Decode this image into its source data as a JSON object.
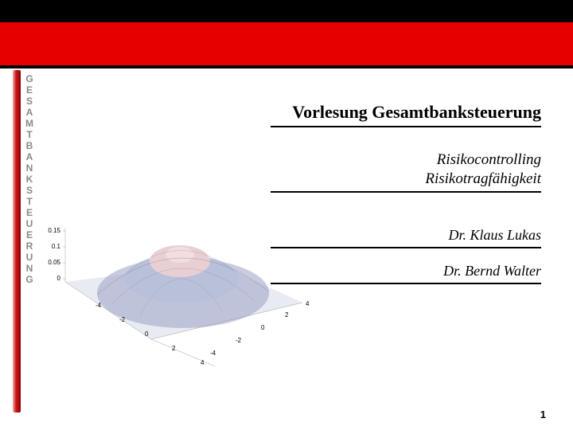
{
  "header": {
    "colors": {
      "black": "#000000",
      "red": "#e60000"
    }
  },
  "sidebar": {
    "letters": [
      "G",
      "E",
      "S",
      "A",
      "M",
      "T",
      "B",
      "A",
      "N",
      "K",
      "S",
      "T",
      "E",
      "U",
      "E",
      "R",
      "U",
      "N",
      "G"
    ],
    "bar_gradient": [
      "#f5b5b5",
      "#d11a1a",
      "#8a0000"
    ],
    "text_color": "#888888",
    "fontsize": 12
  },
  "title": "Vorlesung Gesamtbanksteuerung",
  "subtitle": {
    "line1": "Risikocontrolling",
    "line2": "Risikotragfähigkeit"
  },
  "authors": {
    "a1": "Dr. Klaus Lukas",
    "a2": "Dr. Bernd Walter"
  },
  "page_number": "1",
  "chart": {
    "type": "3d-surface",
    "description": "bivariate normal density surface",
    "z_ticks": [
      "0",
      "0.05",
      "0.1",
      "0.15"
    ],
    "x_ticks": [
      "-4",
      "-2",
      "0",
      "2",
      "4"
    ],
    "y_ticks": [
      "-4",
      "-2",
      "0",
      "2",
      "4"
    ],
    "z_range": [
      0,
      0.16
    ],
    "xy_range": [
      -4,
      4
    ],
    "peak_z": 0.16,
    "colors": {
      "base": "#9aa3c2",
      "mid": "#b8c0da",
      "peak": "#e8cfd4",
      "grid": "#888888",
      "tick_text": "#000000",
      "background": "#ffffff"
    },
    "tick_fontsize": 8
  },
  "typography": {
    "title_fontsize": 22,
    "subtitle_fontsize": 19,
    "author_fontsize": 18,
    "pagenum_fontsize": 13,
    "font_family_serif": "Georgia, Times New Roman, serif"
  }
}
